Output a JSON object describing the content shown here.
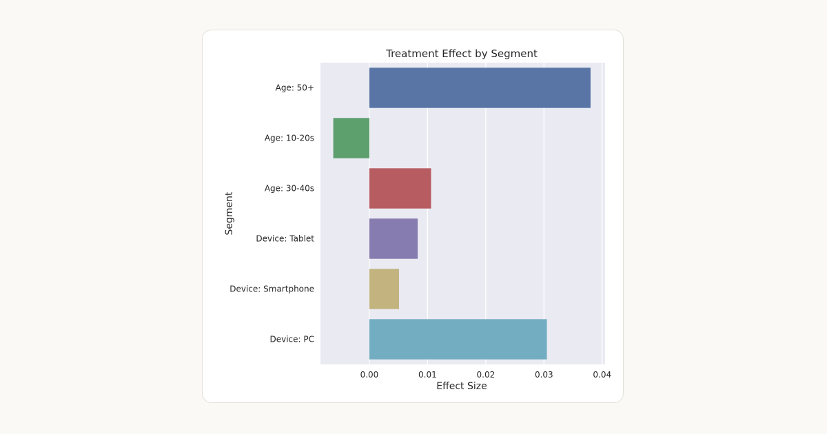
{
  "chart_data": {
    "type": "bar",
    "orientation": "horizontal",
    "title": "Treatment Effect by Segment",
    "xlabel": "Effect Size",
    "ylabel": "Segment",
    "xlim": [
      -0.0084,
      0.0405
    ],
    "xticks": [
      0.0,
      0.01,
      0.02,
      0.03,
      0.04
    ],
    "xtick_labels": [
      "0.00",
      "0.01",
      "0.02",
      "0.03",
      "0.04"
    ],
    "grid": true,
    "categories": [
      "Age: 50+",
      "Age: 10-20s",
      "Age: 30-40s",
      "Device: Tablet",
      "Device: Smartphone",
      "Device: PC"
    ],
    "values": [
      0.038,
      -0.0062,
      0.0106,
      0.0083,
      0.0051,
      0.0305
    ],
    "colors": [
      "#5975a6",
      "#5e9f6e",
      "#b75d61",
      "#877cb0",
      "#c3b47f",
      "#72adc2"
    ]
  }
}
